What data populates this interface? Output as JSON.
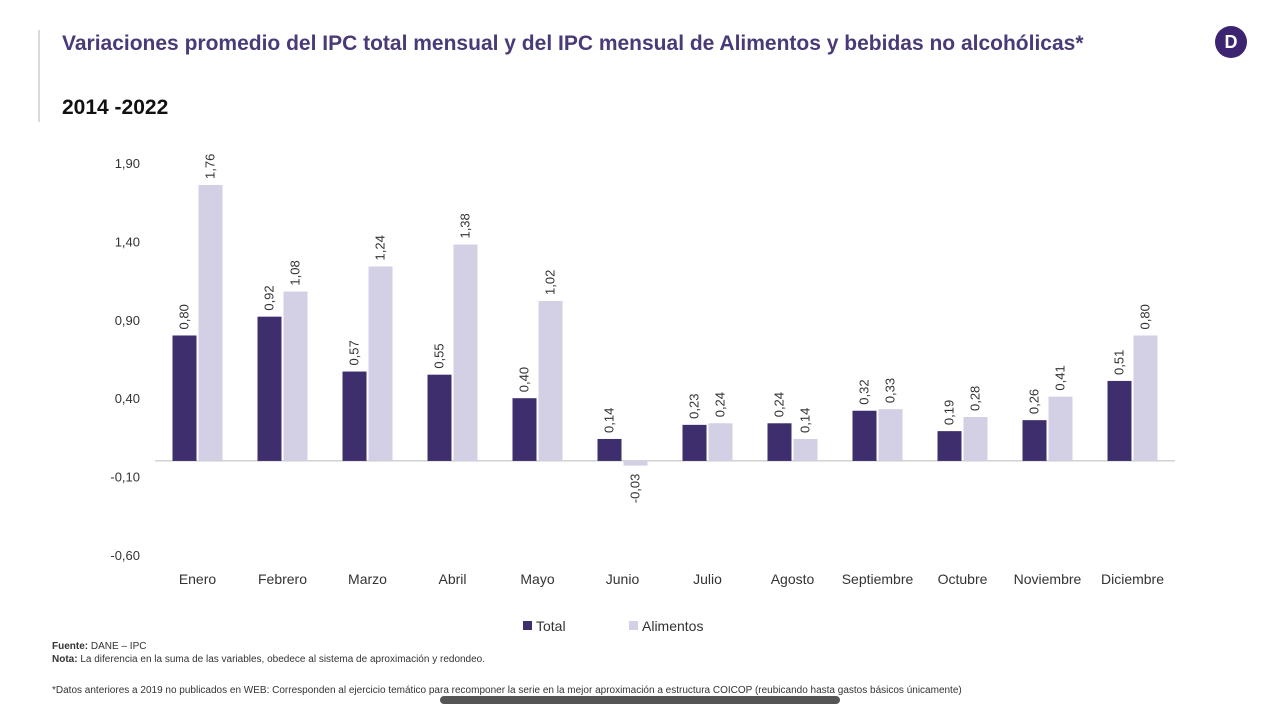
{
  "header": {
    "title": "Variaciones promedio del IPC total mensual y del IPC mensual de Alimentos y bebidas no alcohólicas*",
    "subtitle": "2014 -2022",
    "logo": "D"
  },
  "chart_data": {
    "type": "bar",
    "title": "Variaciones promedio del IPC total mensual y del IPC mensual de Alimentos y bebidas no alcohólicas*",
    "categories": [
      "Enero",
      "Febrero",
      "Marzo",
      "Abril",
      "Mayo",
      "Junio",
      "Julio",
      "Agosto",
      "Septiembre",
      "Octubre",
      "Noviembre",
      "Diciembre"
    ],
    "series": [
      {
        "name": "Total",
        "color": "#3f2e6e",
        "values": [
          0.8,
          0.92,
          0.57,
          0.55,
          0.4,
          0.14,
          0.23,
          0.24,
          0.32,
          0.19,
          0.26,
          0.51
        ],
        "labels": [
          "0,80",
          "0,92",
          "0,57",
          "0,55",
          "0,40",
          "0,14",
          "0,23",
          "0,24",
          "0,32",
          "0,19",
          "0,26",
          "0,51"
        ]
      },
      {
        "name": "Alimentos",
        "color": "#d3cfe4",
        "values": [
          1.76,
          1.08,
          1.24,
          1.38,
          1.02,
          -0.03,
          0.24,
          0.14,
          0.33,
          0.28,
          0.41,
          0.8
        ],
        "labels": [
          "1,76",
          "1,08",
          "1,24",
          "1,38",
          "1,02",
          "-0,03",
          "0,24",
          "0,14",
          "0,33",
          "0,28",
          "0,41",
          "0,80"
        ]
      }
    ],
    "yticks": [
      "1,90",
      "1,40",
      "0,90",
      "0,40",
      "-0,10",
      "-0,60"
    ],
    "ytick_values": [
      1.9,
      1.4,
      0.9,
      0.4,
      -0.1,
      -0.6
    ],
    "ylim": [
      -0.6,
      1.9
    ],
    "grid": false,
    "legend": "bottom"
  },
  "footer": {
    "source_label": "Fuente:",
    "source": " DANE – IPC",
    "note_label": "Nota:",
    "note": " La diferencia en la suma de las variables, obedece al sistema de aproximación y redondeo.",
    "footnote": "*Datos anteriores a 2019 no publicados en WEB: Corresponden al ejercicio temático para recomponer la serie en la mejor aproximación a  estructura COICOP (reubicando hasta gastos básicos únicamente)"
  }
}
